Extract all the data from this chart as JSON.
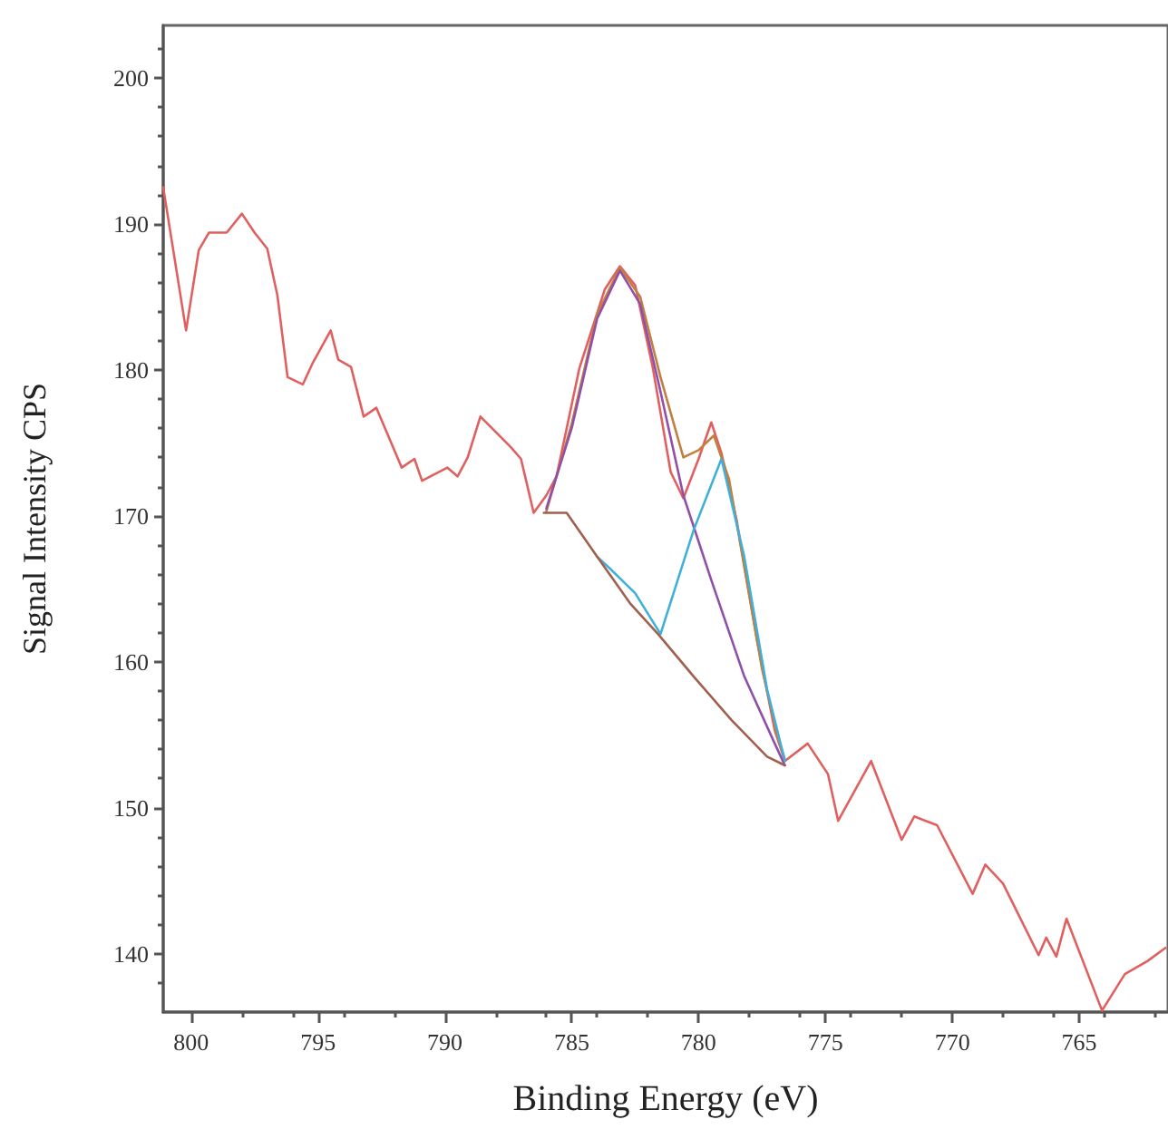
{
  "chart_data": {
    "type": "line",
    "xlabel": "Binding Energy (eV)",
    "ylabel": "Signal Intensity CPS",
    "xlim": [
      801.1,
      761.5
    ],
    "ylim": [
      136,
      203.6
    ],
    "xticks": [
      800,
      795,
      790,
      785,
      780,
      775,
      770,
      765
    ],
    "yticks": [
      140,
      150,
      160,
      170,
      180,
      190,
      200
    ],
    "grid": false,
    "marker": "none",
    "line_style": "solid",
    "series": [
      {
        "color": "#e06060",
        "x": [
          801.1,
          800.2,
          799.7,
          799.3,
          798.6,
          798.0,
          797.5,
          797.0,
          796.6,
          796.2,
          795.6,
          795.2,
          794.5,
          794.2,
          793.7,
          793.2,
          792.7,
          791.7,
          791.2,
          790.9,
          789.9,
          789.5,
          789.1,
          788.6,
          787.4,
          787.0,
          786.5,
          786.0,
          785.6,
          784.7,
          783.7,
          783.1,
          782.5,
          781.8,
          781.1,
          780.6,
          780.0,
          779.5,
          779.1,
          778.5,
          777.7,
          777.0,
          776.6,
          775.7,
          774.9,
          774.5,
          773.2,
          772.0,
          771.5,
          770.6,
          769.2,
          768.7,
          768.0,
          766.6,
          766.3,
          765.9,
          765.5,
          764.1,
          763.2,
          762.3,
          761.6
        ],
        "values": [
          192.5,
          182.7,
          188.2,
          189.4,
          189.4,
          190.7,
          189.4,
          188.3,
          185.1,
          179.5,
          179.0,
          180.5,
          182.7,
          180.7,
          180.2,
          176.8,
          177.4,
          173.3,
          173.9,
          172.4,
          173.3,
          172.7,
          174.0,
          176.8,
          174.7,
          173.9,
          170.2,
          171.4,
          172.7,
          180.1,
          185.5,
          187.1,
          185.8,
          180.1,
          173.0,
          171.2,
          173.9,
          176.4,
          174.3,
          169.7,
          161.5,
          155.3,
          153.2,
          154.4,
          152.3,
          149.1,
          153.2,
          147.8,
          149.4,
          148.8,
          144.1,
          146.1,
          144.8,
          139.9,
          141.1,
          139.8,
          142.4,
          136.1,
          138.6,
          139.5,
          140.4
        ]
      },
      {
        "color": "#c08040",
        "x": [
          786.0,
          785.0,
          784.0,
          783.1,
          782.3,
          781.5,
          780.6,
          780.0,
          779.4,
          778.8,
          778.2,
          777.5,
          776.9,
          776.6
        ],
        "values": [
          170.3,
          176.3,
          183.8,
          187.0,
          185.0,
          179.5,
          174.0,
          174.5,
          175.5,
          172.5,
          166.5,
          159.5,
          155.0,
          153.3
        ]
      },
      {
        "color": "#9050a8",
        "x": [
          786.0,
          785.0,
          784.0,
          783.1,
          782.3,
          781.5,
          780.6,
          779.5,
          778.2,
          777.0,
          776.6
        ],
        "values": [
          170.5,
          176.0,
          183.5,
          186.8,
          184.5,
          178.5,
          171.4,
          165.6,
          159.0,
          154.4,
          152.9
        ]
      },
      {
        "color": "#40b0d8",
        "x": [
          784.0,
          783.5,
          782.5,
          781.5,
          780.2,
          779.1,
          778.2,
          777.3,
          776.6
        ],
        "values": [
          167.2,
          166.4,
          164.7,
          161.9,
          169.0,
          173.9,
          167.2,
          158.1,
          153.2
        ]
      },
      {
        "color": "#a06050",
        "x": [
          786.1,
          785.2,
          784.0,
          782.7,
          781.6,
          780.2,
          778.7,
          777.3,
          776.6
        ],
        "values": [
          170.2,
          170.2,
          167.2,
          164.0,
          161.9,
          159.0,
          156.0,
          153.5,
          152.9
        ]
      }
    ]
  }
}
